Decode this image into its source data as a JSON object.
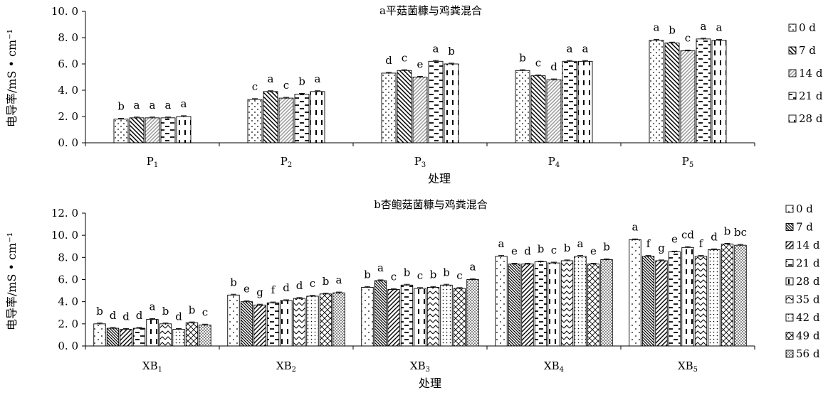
{
  "chart_data": [
    {
      "type": "bar",
      "title": "a平菇菌糠与鸡粪混合",
      "xlabel": "处理",
      "ylabel": "电导率/mS • cm⁻¹",
      "ylim": [
        0,
        10
      ],
      "yticks": [
        "0. 0",
        "2. 0",
        "4. 0",
        "6. 0",
        "8. 0",
        "10. 0"
      ],
      "grid": false,
      "legend_position": "right",
      "categories": [
        [
          "P",
          "1"
        ],
        [
          "P",
          "2"
        ],
        [
          "P",
          "3"
        ],
        [
          "P",
          "4"
        ],
        [
          "P",
          "5"
        ]
      ],
      "series": [
        {
          "name": "0 d",
          "pattern": "dots",
          "values": [
            1.8,
            3.3,
            5.3,
            5.5,
            7.8
          ],
          "labels": [
            "b",
            "c",
            "d",
            "b",
            "a"
          ]
        },
        {
          "name": "7 d",
          "pattern": "diag",
          "values": [
            1.9,
            3.9,
            5.5,
            5.1,
            7.6
          ],
          "labels": [
            "a",
            "a",
            "c",
            "c",
            "b"
          ]
        },
        {
          "name": "14 d",
          "pattern": "graydiag",
          "values": [
            1.9,
            3.4,
            5.0,
            4.8,
            7.0
          ],
          "labels": [
            "a",
            "c",
            "e",
            "d",
            "c"
          ]
        },
        {
          "name": "21 d",
          "pattern": "dashes",
          "values": [
            1.9,
            3.7,
            6.2,
            6.2,
            7.9
          ],
          "labels": [
            "a",
            "b",
            "a",
            "a",
            "a"
          ]
        },
        {
          "name": "28 d",
          "pattern": "vdash",
          "values": [
            2.0,
            3.9,
            6.0,
            6.2,
            7.8
          ],
          "labels": [
            "a",
            "a",
            "b",
            "a",
            "a"
          ]
        }
      ]
    },
    {
      "type": "bar",
      "title": "b杏鲍菇菌糠与鸡粪混合",
      "xlabel": "处理",
      "ylabel": "电导率/mS • cm⁻¹",
      "ylim": [
        0,
        12
      ],
      "yticks": [
        "0. 0",
        "2. 0",
        "4. 0",
        "6. 0",
        "8. 0",
        "10. 0",
        "12. 0"
      ],
      "grid": false,
      "legend_position": "right",
      "categories": [
        [
          "XB",
          "1"
        ],
        [
          "XB",
          "2"
        ],
        [
          "XB",
          "3"
        ],
        [
          "XB",
          "4"
        ],
        [
          "XB",
          "5"
        ]
      ],
      "series": [
        {
          "name": "0 d",
          "pattern": "sparsedots",
          "values": [
            2.0,
            4.6,
            5.3,
            8.1,
            9.6
          ],
          "labels": [
            "b",
            "b",
            "b",
            "a",
            "a"
          ]
        },
        {
          "name": "7 d",
          "pattern": "densediag",
          "values": [
            1.6,
            4.0,
            5.9,
            7.4,
            8.1
          ],
          "labels": [
            "d",
            "e",
            "a",
            "e",
            "f"
          ]
        },
        {
          "name": "14 d",
          "pattern": "antidiag",
          "values": [
            1.5,
            3.7,
            5.1,
            7.4,
            7.7
          ],
          "labels": [
            "d",
            "g",
            "c",
            "d",
            "g"
          ]
        },
        {
          "name": "21 d",
          "pattern": "dashes",
          "values": [
            1.6,
            3.9,
            5.5,
            7.6,
            8.5
          ],
          "labels": [
            "d",
            "f",
            "b",
            "b",
            "e"
          ]
        },
        {
          "name": "28 d",
          "pattern": "vdash",
          "values": [
            2.4,
            4.1,
            5.2,
            7.5,
            8.9
          ],
          "labels": [
            "a",
            "d",
            "c",
            "c",
            "cd"
          ]
        },
        {
          "name": "35 d",
          "pattern": "zigzag",
          "values": [
            2.0,
            4.3,
            5.3,
            7.7,
            8.1
          ],
          "labels": [
            "b",
            "d",
            "b",
            "b",
            "f"
          ]
        },
        {
          "name": "42 d",
          "pattern": "dotted",
          "values": [
            1.5,
            4.5,
            5.5,
            8.1,
            8.7
          ],
          "labels": [
            "d",
            "c",
            "b",
            "a",
            "d"
          ]
        },
        {
          "name": "49 d",
          "pattern": "checker",
          "values": [
            2.1,
            4.7,
            5.2,
            7.4,
            9.2
          ],
          "labels": [
            "b",
            "b",
            "c",
            "e",
            "b"
          ]
        },
        {
          "name": "56 d",
          "pattern": "densedots",
          "values": [
            1.9,
            4.8,
            6.0,
            7.8,
            9.1
          ],
          "labels": [
            "c",
            "a",
            "a",
            "b",
            "bc"
          ]
        }
      ]
    }
  ]
}
